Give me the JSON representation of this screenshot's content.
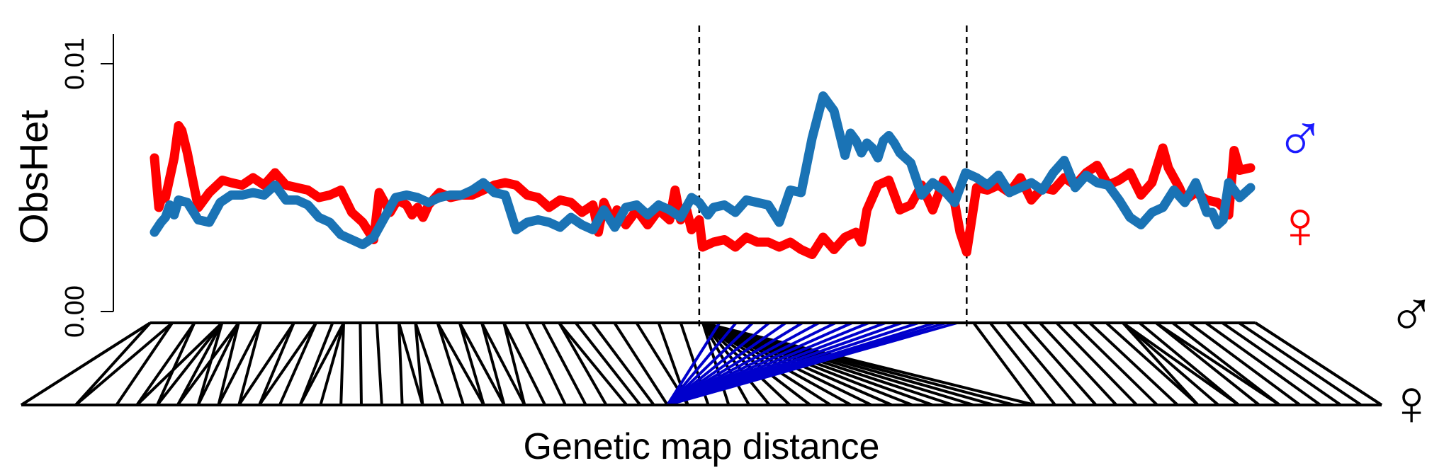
{
  "chart_data": {
    "type": "line",
    "title": "",
    "xlabel": "Genetic map distance",
    "ylabel": "ObsHet",
    "ylim": [
      0,
      0.0112
    ],
    "yticks": [
      {
        "value": 0.0,
        "label": "0.00"
      },
      {
        "value": 0.01,
        "label": "0.01"
      }
    ],
    "xlim": [
      0,
      1
    ],
    "grid": false,
    "dashed_vlines": [
      0.497,
      0.741
    ],
    "series": [
      {
        "name": "♀",
        "color": "#ff0000",
        "x": [
          0.0,
          0.004,
          0.006,
          0.01,
          0.018,
          0.022,
          0.025,
          0.03,
          0.034,
          0.04,
          0.05,
          0.062,
          0.07,
          0.08,
          0.09,
          0.1,
          0.11,
          0.12,
          0.13,
          0.14,
          0.15,
          0.16,
          0.17,
          0.18,
          0.19,
          0.2,
          0.205,
          0.215,
          0.223,
          0.226,
          0.23,
          0.235,
          0.24,
          0.245,
          0.25,
          0.26,
          0.27,
          0.28,
          0.29,
          0.3,
          0.31,
          0.32,
          0.33,
          0.34,
          0.35,
          0.36,
          0.37,
          0.38,
          0.39,
          0.4,
          0.405,
          0.41,
          0.418,
          0.422,
          0.43,
          0.44,
          0.45,
          0.46,
          0.47,
          0.475,
          0.48,
          0.485,
          0.49,
          0.497,
          0.5,
          0.51,
          0.52,
          0.53,
          0.54,
          0.55,
          0.56,
          0.57,
          0.58,
          0.59,
          0.6,
          0.61,
          0.62,
          0.63,
          0.64,
          0.645,
          0.65,
          0.66,
          0.67,
          0.68,
          0.69,
          0.7,
          0.71,
          0.72,
          0.725,
          0.73,
          0.735,
          0.741,
          0.75,
          0.76,
          0.77,
          0.78,
          0.79,
          0.8,
          0.81,
          0.82,
          0.83,
          0.84,
          0.85,
          0.86,
          0.87,
          0.88,
          0.89,
          0.9,
          0.91,
          0.92,
          0.925,
          0.93,
          0.935,
          0.94,
          0.95,
          0.96,
          0.97,
          0.975,
          0.98,
          0.985,
          0.99,
          1.0
        ],
        "y": [
          0.0062,
          0.0042,
          0.0045,
          0.0046,
          0.0062,
          0.0075,
          0.0073,
          0.0064,
          0.0055,
          0.0042,
          0.0048,
          0.0053,
          0.0052,
          0.0051,
          0.0054,
          0.0051,
          0.0056,
          0.0051,
          0.005,
          0.0049,
          0.0046,
          0.0047,
          0.0049,
          0.004,
          0.0036,
          0.0029,
          0.0048,
          0.004,
          0.0046,
          0.0044,
          0.0043,
          0.0039,
          0.0042,
          0.0038,
          0.0043,
          0.0048,
          0.0046,
          0.0047,
          0.0047,
          0.0049,
          0.0051,
          0.0052,
          0.0051,
          0.0047,
          0.0046,
          0.0042,
          0.0045,
          0.0044,
          0.004,
          0.0043,
          0.0032,
          0.0044,
          0.0036,
          0.0041,
          0.0035,
          0.0041,
          0.0035,
          0.0041,
          0.0037,
          0.0049,
          0.0037,
          0.0042,
          0.0033,
          0.0037,
          0.0026,
          0.0028,
          0.0029,
          0.0026,
          0.003,
          0.0028,
          0.0028,
          0.0026,
          0.0028,
          0.0025,
          0.0023,
          0.003,
          0.0025,
          0.003,
          0.0032,
          0.0028,
          0.0041,
          0.0051,
          0.0053,
          0.0041,
          0.0043,
          0.0051,
          0.0041,
          0.0053,
          0.0049,
          0.0044,
          0.0032,
          0.0024,
          0.005,
          0.0049,
          0.0051,
          0.0048,
          0.0054,
          0.0045,
          0.005,
          0.0049,
          0.0054,
          0.0051,
          0.0056,
          0.0059,
          0.0051,
          0.0053,
          0.0056,
          0.0047,
          0.0052,
          0.0066,
          0.0058,
          0.0054,
          0.005,
          0.0045,
          0.0048,
          0.0045,
          0.0044,
          0.0042,
          0.0039,
          0.0065,
          0.0057,
          0.0058
        ]
      },
      {
        "name": "♂",
        "color": "#1a73b5",
        "x": [
          0.0,
          0.006,
          0.01,
          0.014,
          0.018,
          0.022,
          0.03,
          0.04,
          0.05,
          0.06,
          0.07,
          0.08,
          0.09,
          0.1,
          0.11,
          0.12,
          0.13,
          0.14,
          0.15,
          0.16,
          0.17,
          0.18,
          0.19,
          0.2,
          0.21,
          0.22,
          0.23,
          0.24,
          0.25,
          0.26,
          0.27,
          0.28,
          0.29,
          0.3,
          0.31,
          0.32,
          0.33,
          0.34,
          0.35,
          0.36,
          0.37,
          0.38,
          0.39,
          0.4,
          0.41,
          0.42,
          0.43,
          0.44,
          0.45,
          0.46,
          0.47,
          0.48,
          0.49,
          0.497,
          0.505,
          0.51,
          0.52,
          0.53,
          0.54,
          0.55,
          0.56,
          0.57,
          0.58,
          0.59,
          0.6,
          0.61,
          0.62,
          0.63,
          0.635,
          0.64,
          0.645,
          0.65,
          0.655,
          0.66,
          0.665,
          0.67,
          0.675,
          0.68,
          0.69,
          0.7,
          0.71,
          0.72,
          0.73,
          0.735,
          0.74,
          0.75,
          0.76,
          0.77,
          0.78,
          0.79,
          0.8,
          0.81,
          0.82,
          0.83,
          0.84,
          0.85,
          0.86,
          0.87,
          0.88,
          0.89,
          0.9,
          0.91,
          0.92,
          0.93,
          0.94,
          0.95,
          0.96,
          0.965,
          0.97,
          0.975,
          0.98,
          0.99,
          1.0
        ],
        "y": [
          0.0032,
          0.0036,
          0.0038,
          0.0043,
          0.0039,
          0.0045,
          0.0044,
          0.0037,
          0.0036,
          0.0044,
          0.0047,
          0.0047,
          0.0048,
          0.0047,
          0.0051,
          0.0045,
          0.0045,
          0.0043,
          0.0038,
          0.0036,
          0.0031,
          0.0029,
          0.0027,
          0.003,
          0.0038,
          0.0046,
          0.0047,
          0.0046,
          0.0044,
          0.0046,
          0.0047,
          0.0047,
          0.0049,
          0.0052,
          0.0048,
          0.0047,
          0.0033,
          0.0036,
          0.0037,
          0.0036,
          0.0034,
          0.0038,
          0.0035,
          0.0033,
          0.0041,
          0.0034,
          0.0042,
          0.0043,
          0.0039,
          0.0043,
          0.0041,
          0.0038,
          0.0046,
          0.0044,
          0.0039,
          0.0042,
          0.0043,
          0.004,
          0.0045,
          0.0044,
          0.0043,
          0.0036,
          0.0049,
          0.0048,
          0.007,
          0.0087,
          0.0081,
          0.0063,
          0.0072,
          0.0069,
          0.0064,
          0.0068,
          0.0066,
          0.0062,
          0.0069,
          0.0071,
          0.0068,
          0.0064,
          0.006,
          0.0047,
          0.0052,
          0.0049,
          0.0044,
          0.005,
          0.0056,
          0.0054,
          0.0051,
          0.0055,
          0.0048,
          0.005,
          0.0052,
          0.0049,
          0.0056,
          0.0061,
          0.005,
          0.0055,
          0.0052,
          0.0051,
          0.0045,
          0.0038,
          0.0035,
          0.004,
          0.0042,
          0.0049,
          0.0044,
          0.0052,
          0.004,
          0.004,
          0.0035,
          0.0037,
          0.0052,
          0.0046,
          0.005
        ]
      }
    ],
    "map_tracks": {
      "top_symbol": "♂",
      "bottom_symbol": "♀",
      "connector_color": "#000000",
      "highlight_color": "#0000cc",
      "top_positions": [
        0.0,
        0.02,
        0.04,
        0.065,
        0.08,
        0.1,
        0.13,
        0.15,
        0.165,
        0.175,
        0.19,
        0.205,
        0.225,
        0.24,
        0.26,
        0.28,
        0.3,
        0.32,
        0.34,
        0.355,
        0.37,
        0.385,
        0.4,
        0.42,
        0.44,
        0.46,
        0.48,
        0.5,
        0.515,
        0.53,
        0.545,
        0.56,
        0.575,
        0.59,
        0.605,
        0.62,
        0.635,
        0.65,
        0.665,
        0.68,
        0.695,
        0.71,
        0.72,
        0.73,
        0.745,
        0.76,
        0.775,
        0.79,
        0.805,
        0.82,
        0.835,
        0.85,
        0.865,
        0.88,
        0.895,
        0.91,
        0.925,
        0.94,
        0.955,
        0.97,
        0.985,
        1.0
      ],
      "bottom_positions": [
        0.0,
        0.04,
        0.07,
        0.085,
        0.1,
        0.115,
        0.13,
        0.145,
        0.16,
        0.175,
        0.19,
        0.205,
        0.22,
        0.235,
        0.25,
        0.265,
        0.28,
        0.295,
        0.31,
        0.325,
        0.34,
        0.355,
        0.37,
        0.385,
        0.4,
        0.415,
        0.43,
        0.445,
        0.455,
        0.465,
        0.475,
        0.49,
        0.505,
        0.52,
        0.535,
        0.55,
        0.565,
        0.58,
        0.595,
        0.61,
        0.625,
        0.64,
        0.655,
        0.67,
        0.685,
        0.7,
        0.715,
        0.73,
        0.745,
        0.76,
        0.775,
        0.79,
        0.805,
        0.82,
        0.835,
        0.85,
        0.865,
        0.88,
        0.895,
        0.91,
        0.925,
        0.94,
        0.955,
        0.97,
        0.985,
        1.0
      ],
      "links": [
        [
          0,
          0
        ],
        [
          0,
          1
        ],
        [
          1,
          1
        ],
        [
          1,
          2
        ],
        [
          2,
          3
        ],
        [
          2,
          4
        ],
        [
          3,
          3
        ],
        [
          3,
          4
        ],
        [
          3,
          5
        ],
        [
          3,
          6
        ],
        [
          4,
          5
        ],
        [
          4,
          6
        ],
        [
          4,
          7
        ],
        [
          5,
          7
        ],
        [
          5,
          8
        ],
        [
          6,
          8
        ],
        [
          6,
          9
        ],
        [
          7,
          9
        ],
        [
          7,
          10
        ],
        [
          8,
          11
        ],
        [
          9,
          11
        ],
        [
          9,
          12
        ],
        [
          9,
          13
        ],
        [
          10,
          14
        ],
        [
          11,
          15
        ],
        [
          12,
          16
        ],
        [
          12,
          17
        ],
        [
          13,
          17
        ],
        [
          13,
          18
        ],
        [
          14,
          19
        ],
        [
          14,
          20
        ],
        [
          15,
          20
        ],
        [
          15,
          21
        ],
        [
          16,
          21
        ],
        [
          16,
          22
        ],
        [
          17,
          22
        ],
        [
          17,
          23
        ],
        [
          18,
          24
        ],
        [
          19,
          25
        ],
        [
          20,
          26
        ],
        [
          20,
          27
        ],
        [
          21,
          28
        ],
        [
          22,
          29
        ],
        [
          23,
          30
        ],
        [
          24,
          31
        ],
        [
          25,
          31
        ],
        [
          26,
          32
        ],
        [
          27,
          33
        ],
        [
          27,
          34
        ],
        [
          27,
          35
        ],
        [
          27,
          36
        ],
        [
          27,
          37
        ],
        [
          27,
          38
        ],
        [
          27,
          39
        ],
        [
          27,
          40
        ],
        [
          27,
          41
        ],
        [
          27,
          42
        ],
        [
          27,
          43
        ],
        [
          27,
          44
        ],
        [
          27,
          45
        ],
        [
          27,
          46
        ],
        [
          27,
          47
        ],
        [
          27,
          48
        ],
        [
          28,
          30
        ],
        [
          29,
          30
        ],
        [
          30,
          30
        ],
        [
          31,
          30
        ],
        [
          32,
          30
        ],
        [
          33,
          30
        ],
        [
          34,
          30
        ],
        [
          35,
          30
        ],
        [
          36,
          30
        ],
        [
          37,
          30
        ],
        [
          38,
          30
        ],
        [
          39,
          30
        ],
        [
          40,
          30
        ],
        [
          41,
          30
        ],
        [
          42,
          30
        ],
        [
          43,
          30
        ],
        [
          44,
          48
        ],
        [
          45,
          49
        ],
        [
          46,
          50
        ],
        [
          47,
          51
        ],
        [
          48,
          52
        ],
        [
          49,
          53
        ],
        [
          50,
          54
        ],
        [
          51,
          55
        ],
        [
          52,
          56
        ],
        [
          53,
          56
        ],
        [
          53,
          57
        ],
        [
          53,
          58
        ],
        [
          54,
          58
        ],
        [
          55,
          59
        ],
        [
          55,
          60
        ],
        [
          56,
          60
        ],
        [
          57,
          61
        ],
        [
          58,
          62
        ],
        [
          59,
          63
        ],
        [
          60,
          64
        ],
        [
          61,
          65
        ]
      ],
      "highlight_links": [
        [
          28,
          30
        ],
        [
          29,
          30
        ],
        [
          30,
          30
        ],
        [
          31,
          30
        ],
        [
          32,
          30
        ],
        [
          33,
          30
        ],
        [
          34,
          30
        ],
        [
          35,
          30
        ],
        [
          36,
          30
        ],
        [
          37,
          30
        ],
        [
          38,
          30
        ],
        [
          39,
          30
        ],
        [
          40,
          30
        ],
        [
          41,
          30
        ],
        [
          42,
          30
        ],
        [
          43,
          30
        ]
      ]
    }
  }
}
